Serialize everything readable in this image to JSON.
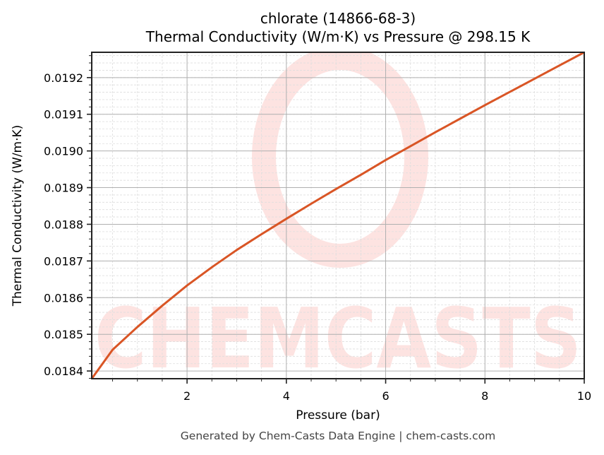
{
  "title": {
    "line1": "chlorate (14866-68-3)",
    "line2": "Thermal Conductivity (W/m·K) vs Pressure @ 298.15 K"
  },
  "footer": "Generated by Chem-Casts Data Engine | chem-casts.com",
  "watermark": {
    "text": "CHEMCASTS",
    "icon": "chemcasts-swirl-logo",
    "color": "#fde3e1"
  },
  "colors": {
    "line": "#d95525",
    "major_grid": "#b0b0b0",
    "minor_grid": "#dedede",
    "axes": "#222222"
  },
  "chart_data": {
    "type": "line",
    "title": "chlorate (14866-68-3)\nThermal Conductivity (W/m·K) vs Pressure @ 298.15 K",
    "xlabel": "Pressure (bar)",
    "ylabel": "Thermal Conductivity (W/m·K)",
    "xlim": [
      0.08,
      10
    ],
    "ylim": [
      0.018379,
      0.019269
    ],
    "xticks": [
      2,
      4,
      6,
      8,
      10
    ],
    "xtick_labels": [
      "2",
      "4",
      "6",
      "8",
      "10"
    ],
    "yticks": [
      0.0184,
      0.0185,
      0.0186,
      0.0187,
      0.0188,
      0.0189,
      0.019,
      0.0191,
      0.0192
    ],
    "ytick_labels": [
      "0.0184",
      "0.0185",
      "0.0186",
      "0.0187",
      "0.0188",
      "0.0189",
      "0.0190",
      "0.0191",
      "0.0192"
    ],
    "x_minor_step": 0.5,
    "y_minor_step": 2e-05,
    "grid": true,
    "legend": null,
    "series": [
      {
        "name": "Thermal Conductivity",
        "color": "#d95525",
        "x": [
          0.08,
          0.5,
          1.0,
          1.5,
          2.0,
          2.5,
          3.0,
          3.5,
          4.0,
          4.5,
          5.0,
          5.5,
          6.0,
          6.5,
          7.0,
          7.5,
          8.0,
          8.5,
          9.0,
          9.5,
          10.0
        ],
        "y": [
          0.018379,
          0.018458,
          0.01852,
          0.018578,
          0.018633,
          0.018683,
          0.01873,
          0.018773,
          0.018815,
          0.018856,
          0.018896,
          0.018935,
          0.018975,
          0.019013,
          0.019051,
          0.019088,
          0.019125,
          0.019161,
          0.019197,
          0.019233,
          0.019269
        ]
      }
    ]
  }
}
